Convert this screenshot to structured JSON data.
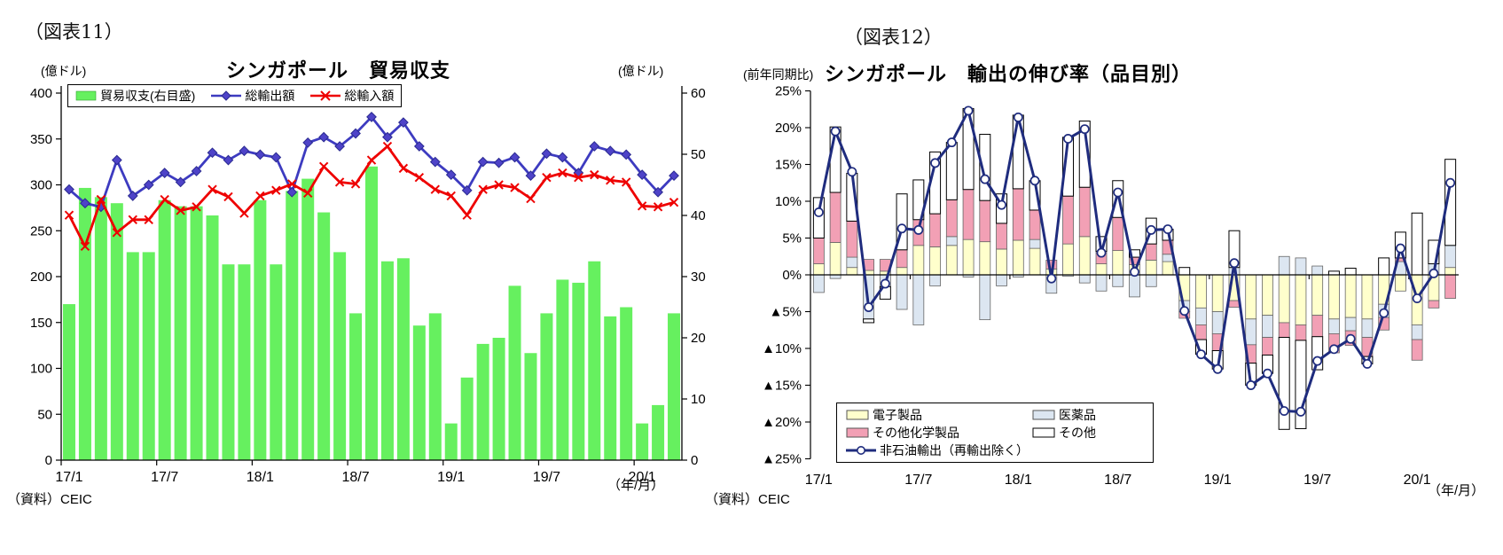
{
  "figure11": {
    "fig_label": "（図表11）",
    "title": "シンガポール　貿易収支",
    "unit_left": "(億ドル)",
    "unit_right": "(億ドル)",
    "source": "（資料）CEIC",
    "axis_caption": "（年/月）",
    "legend": [
      {
        "label": "貿易収支(右目盛)",
        "swatch": "green-bar-swatch",
        "color": "#66F05F"
      },
      {
        "label": "総輸出額",
        "swatch": "blue-diamond-line-swatch",
        "color": "#3D3BC0"
      },
      {
        "label": "総輸入額",
        "swatch": "red-x-line-swatch",
        "color": "#EE0000"
      }
    ],
    "y_ticks_left": [
      "400",
      "350",
      "300",
      "250",
      "200",
      "150",
      "100",
      "50",
      "0"
    ],
    "y_ticks_right": [
      "60",
      "50",
      "40",
      "30",
      "20",
      "10",
      "0"
    ],
    "x_ticks": [
      "17/1",
      "17/7",
      "18/1",
      "18/7",
      "19/1",
      "19/7",
      "20/1"
    ]
  },
  "figure12": {
    "fig_label": "（図表12）",
    "title": "シンガポール　輸出の伸び率（品目別）",
    "unit": "(前年同期比)",
    "source": "（資料）CEIC",
    "axis_caption": "（年/月）",
    "legend": [
      {
        "label": "電子製品",
        "color": "#FFFFCC"
      },
      {
        "label": "医薬品",
        "color": "#DCE6F1"
      },
      {
        "label": "その他化学製品",
        "color": "#F2A0B5"
      },
      {
        "label": "その他",
        "color": "#FFFFFF"
      },
      {
        "label": "非石油輸出（再輸出除く）",
        "color": "#1F2C7E"
      }
    ],
    "y_ticks": [
      "25%",
      "20%",
      "15%",
      "10%",
      "5%",
      "0%",
      "▲5%",
      "▲10%",
      "▲15%",
      "▲20%",
      "▲25%"
    ],
    "x_ticks": [
      "17/1",
      "17/7",
      "18/1",
      "18/7",
      "19/1",
      "19/7",
      "20/1"
    ]
  },
  "chart_data": [
    {
      "type": "bar",
      "subtype": "combo-bar-line",
      "title": "シンガポール　貿易収支",
      "xlabel": "(年/月)",
      "ylabel_left": "億ドル (総輸出額・総輸入額)",
      "ylabel_right": "億ドル (貿易収支)",
      "ylim_left": [
        0,
        400
      ],
      "ylim_right": [
        0,
        60
      ],
      "grid": false,
      "legend_position": "top",
      "categories": [
        "17/1",
        "17/2",
        "17/3",
        "17/4",
        "17/5",
        "17/6",
        "17/7",
        "17/8",
        "17/9",
        "17/10",
        "17/11",
        "17/12",
        "18/1",
        "18/2",
        "18/3",
        "18/4",
        "18/5",
        "18/6",
        "18/7",
        "18/8",
        "18/9",
        "18/10",
        "18/11",
        "18/12",
        "19/1",
        "19/2",
        "19/3",
        "19/4",
        "19/5",
        "19/6",
        "19/7",
        "19/8",
        "19/9",
        "19/10",
        "19/11",
        "19/12",
        "20/1",
        "20/2",
        "20/3"
      ],
      "series": [
        {
          "name": "貿易収支(右目盛)",
          "type": "bar",
          "axis": "right",
          "color": "#66F05F",
          "values": [
            25.5,
            44.5,
            43,
            42,
            34,
            34,
            42.5,
            41.5,
            41.5,
            40,
            32,
            32,
            42.5,
            32,
            44,
            46,
            40.5,
            34,
            24,
            48,
            32.5,
            33,
            22,
            24,
            6,
            13.5,
            19,
            20,
            28.5,
            17.5,
            24,
            29.5,
            29,
            32.5,
            23.5,
            25,
            6,
            9,
            24
          ]
        },
        {
          "name": "総輸出額",
          "type": "line",
          "axis": "left",
          "color": "#3D3BC0",
          "marker": "diamond",
          "values": [
            295,
            280,
            276,
            327,
            288,
            300,
            313,
            303,
            315,
            335,
            327,
            337,
            333,
            330,
            292,
            346,
            352,
            342,
            356,
            374,
            352,
            368,
            342,
            325,
            311,
            294,
            325,
            324,
            330,
            310,
            334,
            330,
            313,
            342,
            337,
            333,
            311,
            292,
            310
          ]
        },
        {
          "name": "総輸入額",
          "type": "line",
          "axis": "left",
          "color": "#EE0000",
          "marker": "x",
          "values": [
            267,
            233,
            284,
            248,
            262,
            262,
            284,
            272,
            276,
            295,
            287,
            269,
            288,
            294,
            301,
            291,
            320,
            303,
            301,
            327,
            342,
            318,
            308,
            295,
            288,
            267,
            295,
            300,
            297,
            285,
            308,
            313,
            308,
            311,
            305,
            303,
            277,
            276,
            281
          ]
        }
      ]
    },
    {
      "type": "bar",
      "subtype": "stacked-bar-line",
      "title": "シンガポール　輸出の伸び率（品目別）",
      "xlabel": "(年/月)",
      "ylabel": "前年同期比 %",
      "ylim": [
        -25,
        25
      ],
      "grid": false,
      "legend_position": "bottom-left-inside",
      "categories": [
        "17/1",
        "17/2",
        "17/3",
        "17/4",
        "17/5",
        "17/6",
        "17/7",
        "17/8",
        "17/9",
        "17/10",
        "17/11",
        "17/12",
        "18/1",
        "18/2",
        "18/3",
        "18/4",
        "18/5",
        "18/6",
        "18/7",
        "18/8",
        "18/9",
        "18/10",
        "18/11",
        "18/12",
        "19/1",
        "19/2",
        "19/3",
        "19/4",
        "19/5",
        "19/6",
        "19/7",
        "19/8",
        "19/9",
        "19/10",
        "19/11",
        "19/12",
        "20/1",
        "20/2",
        "20/3"
      ],
      "series": [
        {
          "name": "電子製品",
          "type": "stacked-bar",
          "color": "#FFFFCC",
          "values": [
            1.5,
            4.4,
            1.0,
            0.6,
            0.5,
            1.0,
            4.0,
            3.8,
            4.0,
            4.8,
            4.5,
            3.5,
            4.7,
            3.6,
            0.8,
            4.2,
            5.2,
            1.5,
            3.3,
            1.4,
            2.0,
            1.8,
            -3.5,
            -4.5,
            -5.0,
            -3.5,
            -6.0,
            -5.5,
            -6.5,
            -6.8,
            -5.5,
            -6.0,
            -5.8,
            -6.0,
            -4.0,
            -2.2,
            -6.8,
            -3.5,
            1.0
          ]
        },
        {
          "name": "医薬品",
          "type": "stacked-bar",
          "color": "#DCE6F1",
          "values": [
            -2.4,
            -0.5,
            1.4,
            -6.0,
            -1.6,
            -4.7,
            -6.8,
            -1.5,
            1.2,
            -0.3,
            -6.1,
            -1.5,
            -0.3,
            1.2,
            -2.5,
            -0.2,
            -1.1,
            -2.2,
            -1.6,
            -3.0,
            -1.6,
            1.0,
            -1.5,
            -2.3,
            -3.0,
            1.0,
            -3.5,
            -3.0,
            2.5,
            2.3,
            1.2,
            -2.0,
            -1.8,
            -2.5,
            -1.8,
            1.8,
            -2.0,
            1.5,
            3.0
          ]
        },
        {
          "name": "その他化学製品",
          "type": "stacked-bar",
          "color": "#F2A0B5",
          "values": [
            3.5,
            6.8,
            4.9,
            1.5,
            1.6,
            2.4,
            3.5,
            4.5,
            5.0,
            6.8,
            5.6,
            3.5,
            7.0,
            4.0,
            1.2,
            6.5,
            6.7,
            1.7,
            4.5,
            1.0,
            2.2,
            1.9,
            -0.9,
            -2.0,
            -2.3,
            -0.9,
            -2.5,
            -2.4,
            -2.0,
            -2.1,
            -2.9,
            -2.6,
            -2.0,
            -2.6,
            -1.7,
            0.5,
            -2.8,
            -1.0,
            -3.2
          ]
        },
        {
          "name": "その他",
          "type": "stacked-bar",
          "color": "#FFFFFF",
          "values": [
            5.5,
            8.9,
            6.5,
            -0.5,
            -1.7,
            7.6,
            5.4,
            8.4,
            7.8,
            11.0,
            9.0,
            4.0,
            10.0,
            4.0,
            0.0,
            8.0,
            9.0,
            2.0,
            5.0,
            1.0,
            3.5,
            1.5,
            1.0,
            -2.0,
            -2.5,
            5.0,
            -3.0,
            -2.5,
            -12.5,
            -12.0,
            -4.5,
            0.5,
            0.9,
            -1.0,
            2.3,
            3.5,
            8.4,
            3.2,
            11.7
          ]
        },
        {
          "name": "非石油輸出（再輸出除く）",
          "type": "line",
          "color": "#1F2C7E",
          "marker": "open-circle",
          "values": [
            8.5,
            19.5,
            14.0,
            -4.4,
            -1.2,
            6.3,
            6.1,
            15.2,
            18.0,
            22.3,
            13.0,
            9.5,
            21.4,
            12.8,
            -0.5,
            18.5,
            19.8,
            3.0,
            11.2,
            0.4,
            6.1,
            6.2,
            -4.9,
            -10.8,
            -12.8,
            1.6,
            -15.0,
            -13.4,
            -18.5,
            -18.6,
            -11.7,
            -10.1,
            -8.7,
            -12.1,
            -5.2,
            3.6,
            -3.2,
            0.2,
            12.5
          ]
        }
      ]
    }
  ]
}
